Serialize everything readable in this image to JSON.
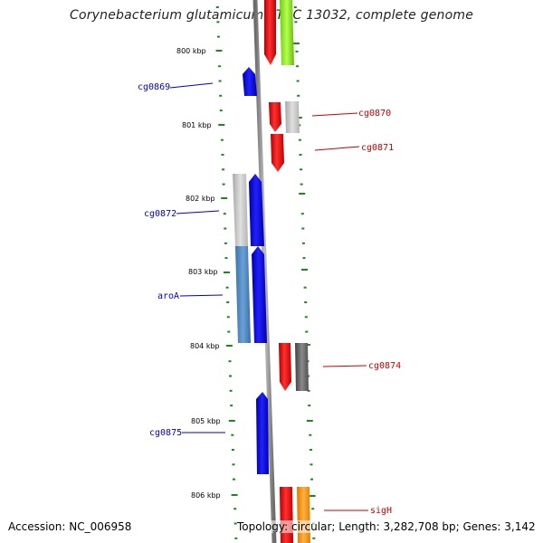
{
  "title": "Corynebacterium glutamicum ATCC 13032, complete genome",
  "accession": "Accession: NC_006958",
  "topology": "Topology: circular; Length: 3,282,708 bp; Genes: 3,142",
  "scale_labels": [
    "800 kbp",
    "801 kbp",
    "802 kbp",
    "803 kbp",
    "804 kbp",
    "805 kbp",
    "806 kbp"
  ],
  "genes": [
    {
      "name": "cg0869",
      "strand": "minus",
      "color": "#0000cc"
    },
    {
      "name": "cg0870",
      "strand": "plus",
      "color": "#cc0000"
    },
    {
      "name": "cg0871",
      "strand": "plus",
      "color": "#cc0000"
    },
    {
      "name": "cg0872",
      "strand": "minus",
      "color": "#0000cc"
    },
    {
      "name": "aroA",
      "strand": "minus",
      "color": "#0000cc"
    },
    {
      "name": "cg0874",
      "strand": "plus",
      "color": "#cc0000"
    },
    {
      "name": "cg0875",
      "strand": "minus",
      "color": "#0000cc"
    },
    {
      "name": "sigH",
      "strand": "plus",
      "color": "#cc0000"
    }
  ],
  "colors": {
    "minus_strand": "#0000ff",
    "plus_strand": "#ff0000",
    "tick": "#1a8a1a",
    "backbone": "#8a8a8a",
    "lime_feature": "#99ff33",
    "orange_feature": "#ff9900",
    "steelblue_feature": "#4a86c0"
  }
}
